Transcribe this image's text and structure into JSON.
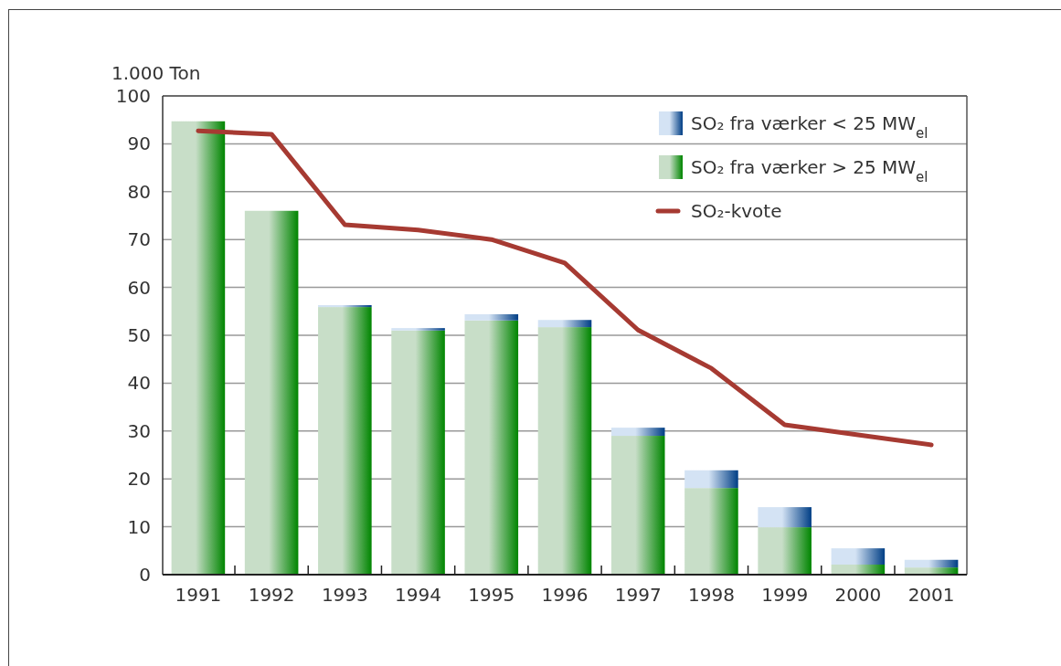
{
  "chart_data": {
    "type": "bar",
    "stacked": true,
    "ylabel": "1.000 Ton",
    "categories": [
      "1991",
      "1992",
      "1993",
      "1994",
      "1995",
      "1996",
      "1997",
      "1998",
      "1999",
      "2000",
      "2001"
    ],
    "series": [
      {
        "name": "SO₂ fra værker > 25 MW$_{el}$",
        "color": "#c8dec8",
        "values": [
          94.7,
          76.0,
          55.9,
          51.0,
          53.1,
          51.7,
          29.0,
          18.1,
          9.9,
          2.1,
          1.5
        ]
      },
      {
        "name": "SO₂ fra værker < 25 MW$_{el}$",
        "color": "#d4e3f4",
        "values": [
          0,
          0,
          0.4,
          0.5,
          1.3,
          1.5,
          1.7,
          3.7,
          4.2,
          3.4,
          1.6
        ]
      },
      {
        "name": "SO₂-kvote",
        "type": "line",
        "color": "#a63a32",
        "values": [
          92.7,
          92.0,
          73.1,
          72.0,
          70.0,
          65.1,
          51.1,
          43.1,
          31.3,
          29.2,
          27.1
        ]
      }
    ],
    "ylim": [
      0,
      100
    ],
    "yticks": [
      0,
      10,
      20,
      30,
      40,
      50,
      60,
      70,
      80,
      90,
      100
    ],
    "grid": "y",
    "legend": "top right"
  }
}
